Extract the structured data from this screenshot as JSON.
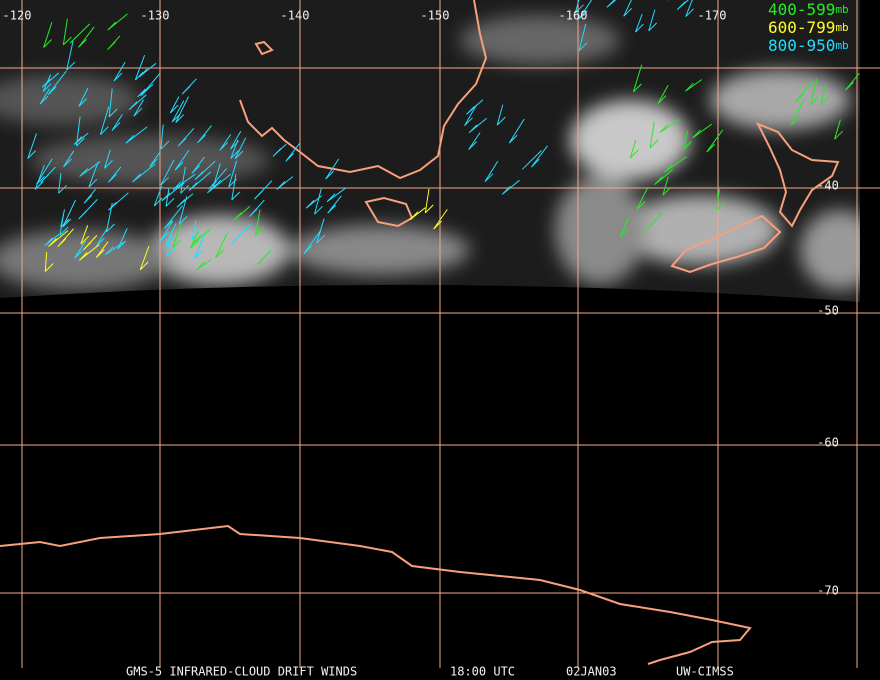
{
  "map": {
    "longitude_labels": [
      "-120",
      "-130",
      "-140",
      "-150",
      "-160",
      "-170"
    ],
    "latitude_labels": [
      "-40",
      "-50",
      "-60",
      "-70"
    ],
    "legend": [
      {
        "range": "400-599",
        "unit": "mb"
      },
      {
        "range": "600-799",
        "unit": "mb"
      },
      {
        "range": "800-950",
        "unit": "mb"
      }
    ],
    "footer": [
      "GMS-5 INFRARED-CLOUD DRIFT WINDS",
      "18:00 UTC",
      "02JAN03",
      "UW-CIMSS"
    ]
  }
}
